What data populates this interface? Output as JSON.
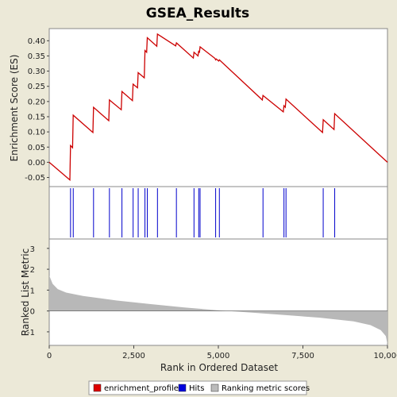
{
  "chart_data": {
    "title": "GSEA_Results",
    "xlabel": "Rank in Ordered Dataset",
    "xlim": [
      0,
      10000
    ],
    "xticks": [
      "0",
      "2,500",
      "5,000",
      "7,500",
      "10,000"
    ],
    "xtick_values": [
      0,
      2500,
      5000,
      7500,
      10000
    ],
    "panels": [
      {
        "name": "enrichment",
        "type": "line",
        "ylabel": "Enrichment Score (ES)",
        "ylim": [
          -0.08,
          0.44
        ],
        "yticks": [
          "-0.05",
          "0.00",
          "0.05",
          "0.10",
          "0.15",
          "0.20",
          "0.25",
          "0.30",
          "0.35",
          "0.40"
        ],
        "ytick_values": [
          -0.05,
          0,
          0.05,
          0.1,
          0.15,
          0.2,
          0.25,
          0.3,
          0.35,
          0.4
        ],
        "color": "#cc0000",
        "points": [
          [
            0,
            0.0
          ],
          [
            610,
            -0.058
          ],
          [
            630,
            0.055
          ],
          [
            690,
            0.048
          ],
          [
            710,
            0.155
          ],
          [
            1290,
            0.098
          ],
          [
            1310,
            0.181
          ],
          [
            1760,
            0.137
          ],
          [
            1780,
            0.205
          ],
          [
            2130,
            0.173
          ],
          [
            2150,
            0.233
          ],
          [
            2460,
            0.203
          ],
          [
            2480,
            0.257
          ],
          [
            2610,
            0.245
          ],
          [
            2630,
            0.295
          ],
          [
            2810,
            0.278
          ],
          [
            2830,
            0.368
          ],
          [
            2880,
            0.362
          ],
          [
            2900,
            0.41
          ],
          [
            3180,
            0.382
          ],
          [
            3200,
            0.422
          ],
          [
            3740,
            0.383
          ],
          [
            3760,
            0.393
          ],
          [
            4260,
            0.343
          ],
          [
            4280,
            0.362
          ],
          [
            4400,
            0.35
          ],
          [
            4420,
            0.367
          ],
          [
            4440,
            0.36
          ],
          [
            4460,
            0.38
          ],
          [
            4900,
            0.342
          ],
          [
            4920,
            0.337
          ],
          [
            4940,
            0.34
          ],
          [
            5010,
            0.333
          ],
          [
            5030,
            0.337
          ],
          [
            6300,
            0.205
          ],
          [
            6320,
            0.22
          ],
          [
            6920,
            0.166
          ],
          [
            6940,
            0.186
          ],
          [
            6980,
            0.181
          ],
          [
            7000,
            0.208
          ],
          [
            8080,
            0.098
          ],
          [
            8100,
            0.14
          ],
          [
            8420,
            0.108
          ],
          [
            8440,
            0.16
          ],
          [
            10000,
            0.0
          ]
        ]
      },
      {
        "name": "hits",
        "type": "hits",
        "color": "#0000cc",
        "positions": [
          630,
          710,
          1310,
          1780,
          2150,
          2480,
          2630,
          2830,
          2900,
          3200,
          3760,
          4280,
          4420,
          4460,
          4920,
          5030,
          6320,
          6940,
          7000,
          8100,
          8440
        ]
      },
      {
        "name": "ranking",
        "type": "area",
        "ylabel": "Ranked List Metric",
        "ylim": [
          -1.65,
          3.45
        ],
        "yticks": [
          "-1",
          "0",
          "1",
          "2",
          "3"
        ],
        "ytick_values": [
          -1,
          0,
          1,
          2,
          3
        ],
        "color": "#b8b8b8",
        "points": [
          [
            0,
            1.7
          ],
          [
            100,
            1.3
          ],
          [
            250,
            1.05
          ],
          [
            500,
            0.88
          ],
          [
            1000,
            0.72
          ],
          [
            2000,
            0.5
          ],
          [
            3000,
            0.33
          ],
          [
            4000,
            0.17
          ],
          [
            5000,
            0.03
          ],
          [
            6000,
            -0.08
          ],
          [
            7000,
            -0.2
          ],
          [
            8000,
            -0.32
          ],
          [
            9000,
            -0.5
          ],
          [
            9500,
            -0.68
          ],
          [
            9800,
            -0.92
          ],
          [
            9950,
            -1.2
          ],
          [
            10000,
            -1.6
          ]
        ]
      }
    ],
    "legend": {
      "placement": "bottom",
      "items": [
        {
          "label": "enrichment_profile",
          "color": "#dd0000"
        },
        {
          "label": "Hits",
          "color": "#0000dd"
        },
        {
          "label": "Ranking metric scores",
          "color": "#bbbbbb"
        }
      ]
    }
  }
}
